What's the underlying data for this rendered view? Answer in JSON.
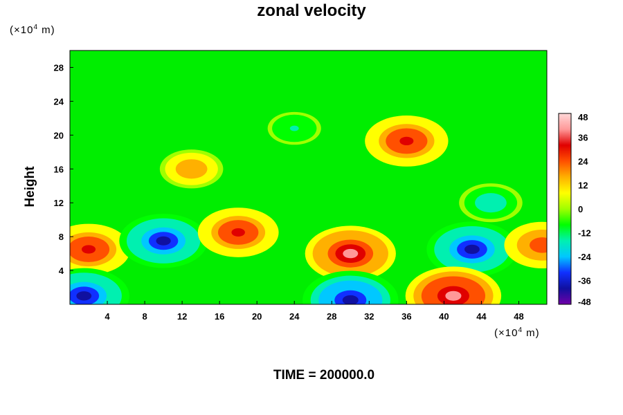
{
  "chart_data": {
    "type": "heatmap",
    "title": "zonal velocity",
    "xlabel": "",
    "ylabel": "Height",
    "x_unit": {
      "prefix": "(×10",
      "exp": "4",
      "suffix": " m)"
    },
    "y_unit": {
      "prefix": "(×10",
      "exp": "4",
      "suffix": " m)"
    },
    "xlim": [
      0,
      51
    ],
    "ylim": [
      0,
      30
    ],
    "x_ticks": [
      4,
      8,
      12,
      16,
      20,
      24,
      28,
      32,
      36,
      40,
      44,
      48
    ],
    "y_ticks": [
      4,
      8,
      12,
      16,
      20,
      24,
      28
    ],
    "colorbar": {
      "min": -48,
      "max": 48,
      "ticks": [
        48,
        36,
        24,
        12,
        0,
        -12,
        -24,
        -36,
        -48
      ],
      "colors": [
        "#7000a8",
        "#1010a0",
        "#1030ff",
        "#00c8ff",
        "#00f0b0",
        "#00ff00",
        "#a0ff00",
        "#ffff00",
        "#ffb000",
        "#ff5000",
        "#e00000",
        "#ff9898",
        "#ffd8d8"
      ]
    },
    "field_features": [
      {
        "x": 2,
        "y": 6.5,
        "value": 38
      },
      {
        "x": 10,
        "y": 7.5,
        "value": -42
      },
      {
        "x": 18,
        "y": 8.5,
        "value": 36
      },
      {
        "x": 30,
        "y": 6,
        "value": 44
      },
      {
        "x": 43,
        "y": 6.5,
        "value": -44
      },
      {
        "x": 50.5,
        "y": 7,
        "value": 32
      },
      {
        "x": 41,
        "y": 1,
        "value": 48
      },
      {
        "x": 30,
        "y": 0.5,
        "value": -48
      },
      {
        "x": 1.5,
        "y": 1,
        "value": -44
      },
      {
        "x": 36,
        "y": 19.3,
        "value": 38
      },
      {
        "x": 13,
        "y": 16,
        "value": 22
      },
      {
        "x": 45,
        "y": 12,
        "value": -22
      },
      {
        "x": 24,
        "y": 20.8,
        "value": -14
      }
    ]
  },
  "footer": {
    "time_label": "TIME = 200000.0"
  }
}
